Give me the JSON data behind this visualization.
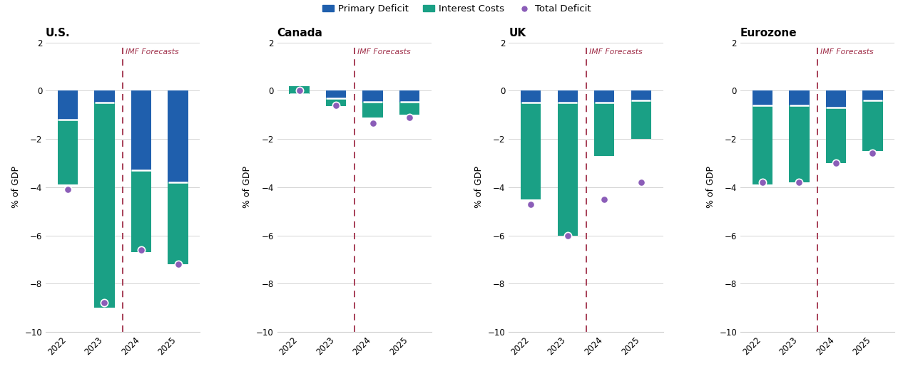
{
  "panels": [
    {
      "title": "U.S.",
      "years": [
        "2022",
        "2023",
        "2024",
        "2025"
      ],
      "primary_deficit": [
        -1.2,
        -0.5,
        -3.3,
        -3.8
      ],
      "interest_costs": [
        -2.7,
        -8.5,
        -3.4,
        -3.4
      ],
      "total_deficit_dot": [
        -4.1,
        -8.8,
        -6.6,
        -7.2
      ]
    },
    {
      "title": "Canada",
      "years": [
        "2022",
        "2023",
        "2024",
        "2025"
      ],
      "primary_deficit": [
        -0.15,
        -0.3,
        -0.45,
        -0.45
      ],
      "interest_costs": [
        0.35,
        -0.35,
        -0.65,
        -0.55
      ],
      "total_deficit_dot": [
        0.0,
        -0.6,
        -1.35,
        -1.1
      ]
    },
    {
      "title": "UK",
      "years": [
        "2022",
        "2023",
        "2024",
        "2025"
      ],
      "primary_deficit": [
        -0.5,
        -0.5,
        -0.5,
        -0.4
      ],
      "interest_costs": [
        -4.0,
        -5.5,
        -2.2,
        -1.6
      ],
      "total_deficit_dot": [
        -4.7,
        -6.0,
        -4.5,
        -3.8
      ]
    },
    {
      "title": "Eurozone",
      "years": [
        "2022",
        "2023",
        "2024",
        "2025"
      ],
      "primary_deficit": [
        -0.6,
        -0.6,
        -0.7,
        -0.4
      ],
      "interest_costs": [
        -3.3,
        -3.2,
        -2.3,
        -2.1
      ],
      "total_deficit_dot": [
        -3.8,
        -3.8,
        -3.0,
        -2.6
      ]
    }
  ],
  "color_primary": "#1F5FAD",
  "color_interest": "#1AA085",
  "color_dot": "#8B5DB8",
  "color_dashed_line": "#A0304A",
  "ylabel": "% of GDP",
  "ylim": [
    -10,
    2
  ],
  "yticks": [
    -10,
    -8,
    -6,
    -4,
    -2,
    0,
    2
  ],
  "background_color": "#FFFFFF",
  "grid_color": "#CCCCCC",
  "imf_label": "IMF Forecasts",
  "bar_width": 0.55
}
